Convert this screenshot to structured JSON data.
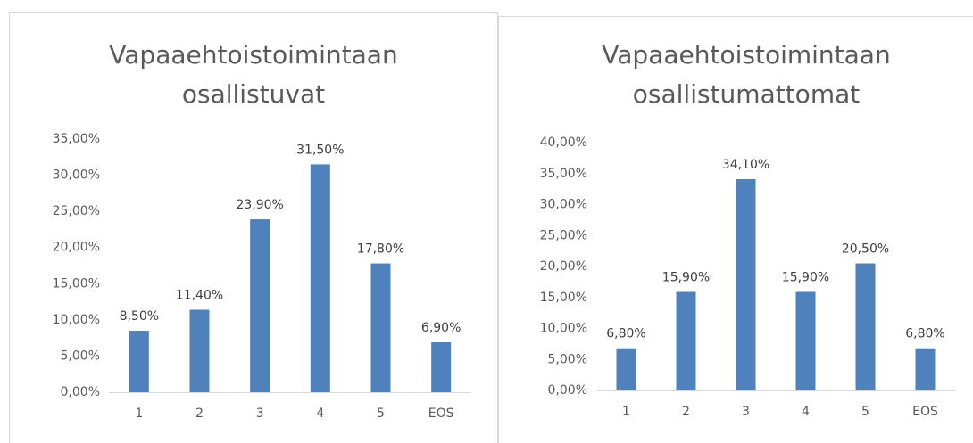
{
  "chart_data": [
    {
      "type": "bar",
      "title": "Vapaaehtoistoimintaan osallistuvat",
      "categories": [
        "1",
        "2",
        "3",
        "4",
        "5",
        "EOS"
      ],
      "values": [
        8.5,
        11.4,
        23.9,
        31.5,
        17.8,
        6.9
      ],
      "value_labels": [
        "8,50%",
        "11,40%",
        "23,90%",
        "31,50%",
        "17,80%",
        "6,90%"
      ],
      "color": "#4f81bd",
      "ylim": [
        0,
        35
      ],
      "yticks": [
        {
          "value": 0,
          "label": "0,00%"
        },
        {
          "value": 5,
          "label": "5,00%"
        },
        {
          "value": 10,
          "label": "10,00%"
        },
        {
          "value": 15,
          "label": "15,00%"
        },
        {
          "value": 20,
          "label": "20,00%"
        },
        {
          "value": 25,
          "label": "25,00%"
        },
        {
          "value": 30,
          "label": "30,00%"
        },
        {
          "value": 35,
          "label": "35,00%"
        }
      ],
      "grid": false
    },
    {
      "type": "bar",
      "title": "Vapaaehtoistoimintaan osallistumattomat",
      "categories": [
        "1",
        "2",
        "3",
        "4",
        "5",
        "EOS"
      ],
      "values": [
        6.8,
        15.9,
        34.1,
        15.9,
        20.5,
        6.8
      ],
      "value_labels": [
        "6,80%",
        "15,90%",
        "34,10%",
        "15,90%",
        "20,50%",
        "6,80%"
      ],
      "color": "#4f81bd",
      "ylim": [
        0,
        40
      ],
      "yticks": [
        {
          "value": 0,
          "label": "0,00%"
        },
        {
          "value": 5,
          "label": "5,00%"
        },
        {
          "value": 10,
          "label": "10,00%"
        },
        {
          "value": 15,
          "label": "15,00%"
        },
        {
          "value": 20,
          "label": "20,00%"
        },
        {
          "value": 25,
          "label": "25,00%"
        },
        {
          "value": 30,
          "label": "30,00%"
        },
        {
          "value": 35,
          "label": "35,00%"
        },
        {
          "value": 40,
          "label": "40,00%"
        }
      ],
      "grid": false
    }
  ]
}
